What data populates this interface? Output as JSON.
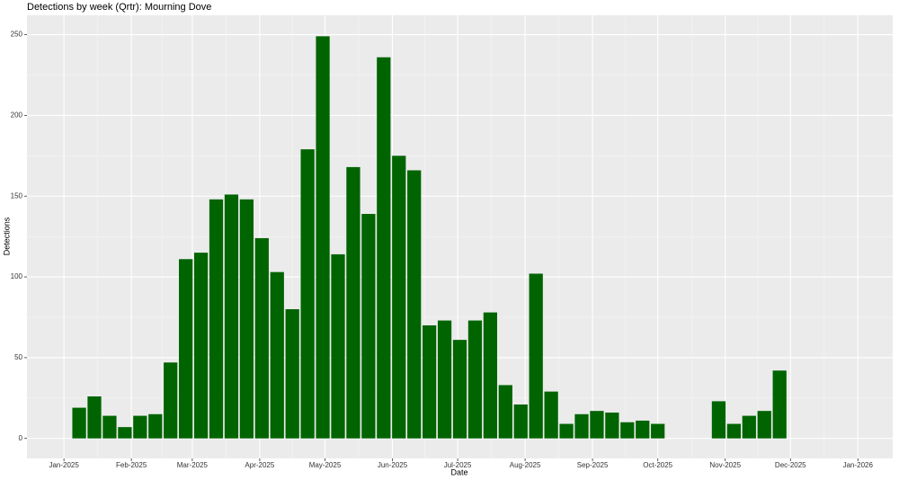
{
  "chart_data": {
    "type": "bar",
    "title": "Detections by week (Qrtr): Mourning Dove",
    "x_label": "Date",
    "y_label": "Detections",
    "x": [
      7,
      14,
      21,
      28,
      35,
      42,
      49,
      56,
      63,
      70,
      77,
      84,
      91,
      98,
      105,
      112,
      119,
      126,
      133,
      140,
      147,
      154,
      161,
      168,
      175,
      182,
      189,
      196,
      203,
      210,
      217,
      224,
      231,
      238,
      245,
      252,
      259,
      266,
      273,
      301,
      308,
      315,
      322,
      329
    ],
    "values": [
      19,
      26,
      14,
      7,
      14,
      15,
      47,
      111,
      115,
      148,
      151,
      148,
      124,
      103,
      80,
      179,
      249,
      114,
      168,
      139,
      236,
      175,
      166,
      70,
      73,
      61,
      73,
      78,
      33,
      21,
      102,
      29,
      9,
      15,
      17,
      16,
      10,
      11,
      9,
      23,
      9,
      14,
      17,
      42
    ],
    "color": "#006400",
    "xlim": [
      -17,
      381
    ],
    "xticks": [
      {
        "value": 0,
        "label": "Jan-2025"
      },
      {
        "value": 31,
        "label": "Feb-2025"
      },
      {
        "value": 59,
        "label": "Mar-2025"
      },
      {
        "value": 90,
        "label": "Apr-2025"
      },
      {
        "value": 120,
        "label": "May-2025"
      },
      {
        "value": 151,
        "label": "Jun-2025"
      },
      {
        "value": 181,
        "label": "Jul-2025"
      },
      {
        "value": 212,
        "label": "Aug-2025"
      },
      {
        "value": 243,
        "label": "Sep-2025"
      },
      {
        "value": 273,
        "label": "Oct-2025"
      },
      {
        "value": 304,
        "label": "Nov-2025"
      },
      {
        "value": 334,
        "label": "Dec-2025"
      },
      {
        "value": 365,
        "label": "Jan-2026"
      }
    ],
    "ylim": [
      -12.4,
      262
    ],
    "yticks": [
      0,
      50,
      100,
      150,
      200,
      250
    ],
    "grid": true
  }
}
